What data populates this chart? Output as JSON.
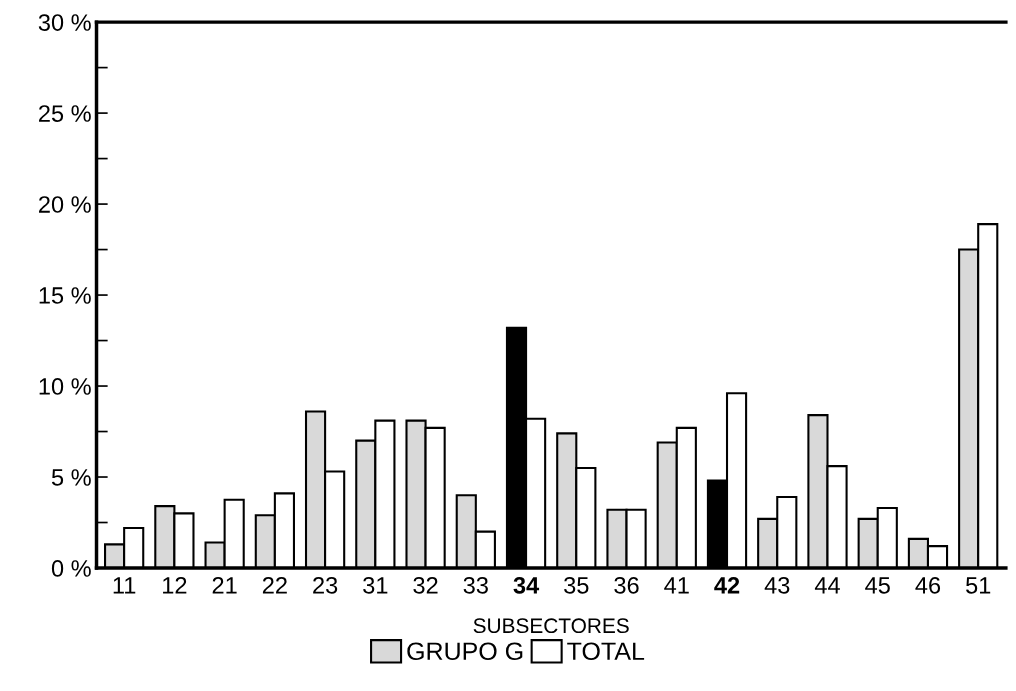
{
  "chart_data": {
    "type": "bar",
    "xlabel": "SUBSECTORES",
    "categories": [
      "11",
      "12",
      "21",
      "22",
      "23",
      "31",
      "32",
      "33",
      "34",
      "35",
      "36",
      "41",
      "42",
      "43",
      "44",
      "45",
      "46",
      "51"
    ],
    "series": [
      {
        "name": "GRUPO G",
        "color": "#d9d9d9",
        "colors": [
          "#d9d9d9",
          "#d9d9d9",
          "#d9d9d9",
          "#d9d9d9",
          "#d9d9d9",
          "#d9d9d9",
          "#d9d9d9",
          "#d9d9d9",
          "#000000",
          "#d9d9d9",
          "#d9d9d9",
          "#d9d9d9",
          "#000000",
          "#d9d9d9",
          "#d9d9d9",
          "#d9d9d9",
          "#d9d9d9",
          "#d9d9d9"
        ],
        "values": [
          1.3,
          3.4,
          1.4,
          2.9,
          8.6,
          7.0,
          8.1,
          4.0,
          13.2,
          7.4,
          3.2,
          6.9,
          4.8,
          2.7,
          8.4,
          2.7,
          1.6,
          17.5
        ]
      },
      {
        "name": "TOTAL",
        "color": "#ffffff",
        "values": [
          2.2,
          3.0,
          3.75,
          4.1,
          5.3,
          8.1,
          7.7,
          2.0,
          8.2,
          5.5,
          3.2,
          7.7,
          9.6,
          3.9,
          5.6,
          3.3,
          1.2,
          18.9
        ]
      }
    ],
    "ylim": [
      0,
      30
    ],
    "yticks": [
      {
        "value": 0,
        "label": "0 %"
      },
      {
        "value": 2.5,
        "label": null
      },
      {
        "value": 5,
        "label": "5 %"
      },
      {
        "value": 7.5,
        "label": null
      },
      {
        "value": 10,
        "label": "10 %"
      },
      {
        "value": 12.5,
        "label": null
      },
      {
        "value": 15,
        "label": "15 %"
      },
      {
        "value": 17.5,
        "label": null
      },
      {
        "value": 20,
        "label": "20 %"
      },
      {
        "value": 22.5,
        "label": null
      },
      {
        "value": 25,
        "label": "25 %"
      },
      {
        "value": 27.5,
        "label": null
      },
      {
        "value": 30,
        "label": "30 %"
      }
    ],
    "grid": false,
    "legend": "bottom"
  }
}
